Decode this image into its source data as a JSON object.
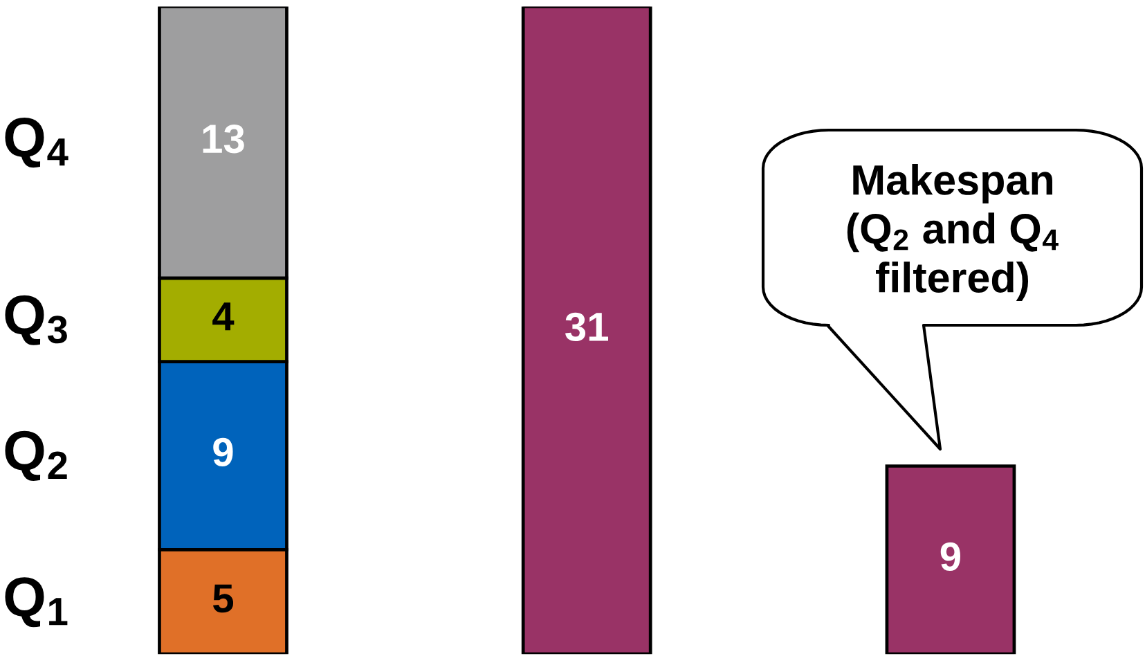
{
  "chart_data": {
    "type": "bar",
    "stacked": true,
    "categories": [
      null,
      null,
      null
    ],
    "series": [
      {
        "name": "Q$_{1}$",
        "color": "#e07028",
        "values": [
          5,
          null,
          null
        ]
      },
      {
        "name": "Q$_{2}$",
        "color": "#0063bb",
        "values": [
          9,
          null,
          null
        ]
      },
      {
        "name": "Q$_{3}$",
        "color": "#a3ad00",
        "values": [
          4,
          null,
          null
        ]
      },
      {
        "name": "Q$_{4}$",
        "color": "#9e9e9f",
        "values": [
          13,
          null,
          null
        ]
      },
      {
        "color": "#993366",
        "values": [
          null,
          31,
          9
        ]
      }
    ],
    "data_labels": true,
    "annotations": [
      "Makespan\n(Q$_{2}$ and Q$_{4}$\nfiltered)"
    ]
  }
}
